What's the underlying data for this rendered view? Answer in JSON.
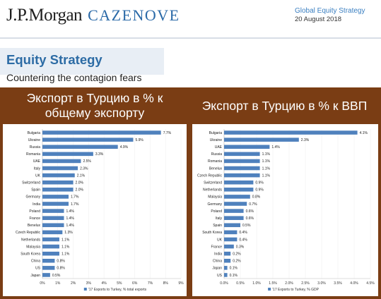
{
  "header": {
    "brand_jpm": "J.P.Morgan",
    "brand_caz": "CAZENOVE",
    "series": "Global Equity Strategy",
    "date": "20 August 2018",
    "title": "Equity Strategy",
    "subtitle": "Countering the contagion fears"
  },
  "captions": {
    "left": "Экспорт в Турцию в % к общему экспорту",
    "right": "Экспорт в Турцию в % к ВВП"
  },
  "colors": {
    "panel": "#7a3d14",
    "bar": "#4f81bd",
    "title": "#2d6ca5"
  },
  "chart_data": [
    {
      "type": "bar",
      "orientation": "horizontal",
      "categories": [
        "Bulgaria",
        "Ukraine",
        "Russia",
        "Romania",
        "UAE",
        "Italy",
        "UK",
        "Switzerland",
        "Spain",
        "Germany",
        "India",
        "Poland",
        "France",
        "Benelux",
        "Czech Republic",
        "Netherlands",
        "Malaysia",
        "South Korea",
        "China",
        "US",
        "Japan"
      ],
      "values": [
        7.7,
        5.9,
        4.9,
        3.3,
        2.5,
        2.3,
        2.1,
        2.0,
        2.0,
        1.7,
        1.7,
        1.4,
        1.4,
        1.4,
        1.3,
        1.1,
        1.1,
        1.1,
        0.8,
        0.8,
        0.5
      ],
      "value_labels": [
        "7.7%",
        "5.9%",
        "4.9%",
        "3.3%",
        "2.5%",
        "2.3%",
        "2.1%",
        "2.0%",
        "2.0%",
        "1.7%",
        "1.7%",
        "1.4%",
        "1.4%",
        "1.4%",
        "1.3%",
        "1.1%",
        "1.1%",
        "1.1%",
        "0.8%",
        "0.8%",
        "0.5%"
      ],
      "xlim": [
        0,
        9
      ],
      "ticks": [
        0,
        1,
        2,
        3,
        4,
        5,
        6,
        7,
        8,
        9
      ],
      "tick_labels": [
        "0%",
        "1%",
        "2%",
        "3%",
        "4%",
        "5%",
        "6%",
        "7%",
        "8%",
        "9%"
      ],
      "legend": "'17 Exports to Turkey, % total exports",
      "legend_position": "bottom"
    },
    {
      "type": "bar",
      "orientation": "horizontal",
      "categories": [
        "Bulgaria",
        "Ukraine",
        "UAE",
        "Russia",
        "Romania",
        "Benelux",
        "Czech Republic",
        "Switzerland",
        "Netherlands",
        "Malaysia",
        "Germany",
        "Poland",
        "Italy",
        "Spain",
        "South Korea",
        "UK",
        "France",
        "India",
        "China",
        "Japan",
        "US"
      ],
      "values": [
        4.1,
        2.3,
        1.4,
        1.1,
        1.1,
        1.1,
        1.1,
        0.9,
        0.9,
        0.8,
        0.7,
        0.6,
        0.6,
        0.5,
        0.4,
        0.4,
        0.3,
        0.2,
        0.2,
        0.1,
        0.1
      ],
      "value_labels": [
        "4.1%",
        "2.3%",
        "1.4%",
        "1.1%",
        "1.1%",
        "1.1%",
        "1.1%",
        "0.9%",
        "0.9%",
        "0.8%",
        "0.7%",
        "0.6%",
        "0.6%",
        "0.5%",
        "0.4%",
        "0.4%",
        "0.3%",
        "0.2%",
        "0.2%",
        "0.1%",
        "0.1%"
      ],
      "xlim": [
        0,
        4.5
      ],
      "ticks": [
        0,
        0.5,
        1,
        1.5,
        2,
        2.5,
        3,
        3.5,
        4,
        4.5
      ],
      "tick_labels": [
        "0.0%",
        "0.5%",
        "1.0%",
        "1.5%",
        "2.0%",
        "2.5%",
        "3.0%",
        "3.5%",
        "4.0%",
        "4.5%"
      ],
      "legend": "'17 Exports to Turkey, % GDP",
      "legend_position": "bottom"
    }
  ]
}
